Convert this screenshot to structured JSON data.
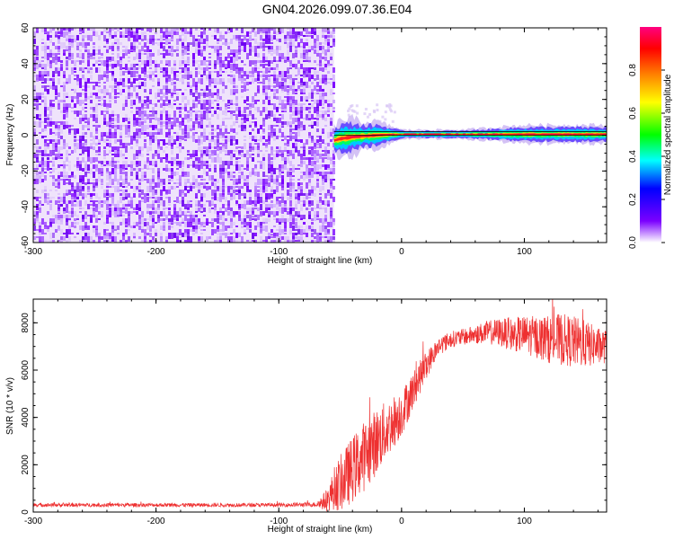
{
  "title": "GN04.2026.099.07.36.E04",
  "chart_data": [
    {
      "type": "heatmap",
      "xlabel": "Height of straight line (km)",
      "ylabel": "Frequency (Hz)",
      "xlim": [
        -300,
        167
      ],
      "ylim": [
        -60,
        60
      ],
      "xticks": [
        -300,
        -200,
        -100,
        0,
        100
      ],
      "yticks": [
        -60,
        -40,
        -20,
        0,
        20,
        40,
        60
      ],
      "noise_region_x": [
        -300,
        -55
      ],
      "signal_ridge": {
        "x": [
          -55,
          -50,
          -40,
          -30,
          -20,
          -10,
          0,
          50,
          100,
          120,
          140,
          167
        ],
        "frequency": [
          -3,
          -2,
          -1,
          -0.5,
          0,
          0.3,
          0.5,
          0.5,
          0.5,
          0.5,
          0.5,
          0.5
        ],
        "spread_hz": [
          3,
          4,
          4,
          3,
          3,
          2,
          1,
          1,
          2,
          2,
          2,
          2
        ]
      },
      "reference_line_hz": [
        2,
        0
      ],
      "colorbar": {
        "label": "Normalized spectral amplitude",
        "range": [
          0.0,
          1.0
        ],
        "ticks": [
          0.0,
          0.2,
          0.4,
          0.6,
          0.8
        ],
        "colors": [
          "#ffffff",
          "#7b00ff",
          "#0000ff",
          "#00ffff",
          "#00ff00",
          "#ffff00",
          "#ff8000",
          "#ff0000",
          "#ff0080"
        ]
      }
    },
    {
      "type": "line",
      "xlabel": "Height of straight line (km)",
      "ylabel": "SNR (10 * v/v)",
      "xlim": [
        -300,
        167
      ],
      "ylim": [
        0,
        9000
      ],
      "xticks": [
        -300,
        -200,
        -100,
        0,
        100
      ],
      "yticks": [
        0,
        2000,
        4000,
        6000,
        8000
      ],
      "series": [
        {
          "color": "#ee3030",
          "x": [
            -300,
            -250,
            -200,
            -150,
            -100,
            -70,
            -60,
            -55,
            -50,
            -40,
            -30,
            -20,
            -10,
            0,
            10,
            20,
            30,
            40,
            50,
            60,
            70,
            80,
            90,
            100,
            110,
            120,
            130,
            140,
            150,
            160,
            167
          ],
          "values": [
            300,
            300,
            300,
            300,
            300,
            320,
            500,
            1000,
            1200,
            1800,
            2400,
            3000,
            3600,
            4200,
            5200,
            6200,
            7000,
            7300,
            7400,
            7500,
            7600,
            7600,
            7500,
            7500,
            7400,
            7300,
            7300,
            7200,
            7100,
            7000,
            7000
          ],
          "noise_amplitude": [
            80,
            80,
            80,
            80,
            80,
            100,
            500,
            900,
            1200,
            1400,
            1500,
            1400,
            1200,
            1000,
            800,
            600,
            400,
            350,
            350,
            400,
            500,
            600,
            700,
            800,
            900,
            1000,
            1100,
            1100,
            1000,
            800,
            700
          ]
        }
      ]
    }
  ]
}
